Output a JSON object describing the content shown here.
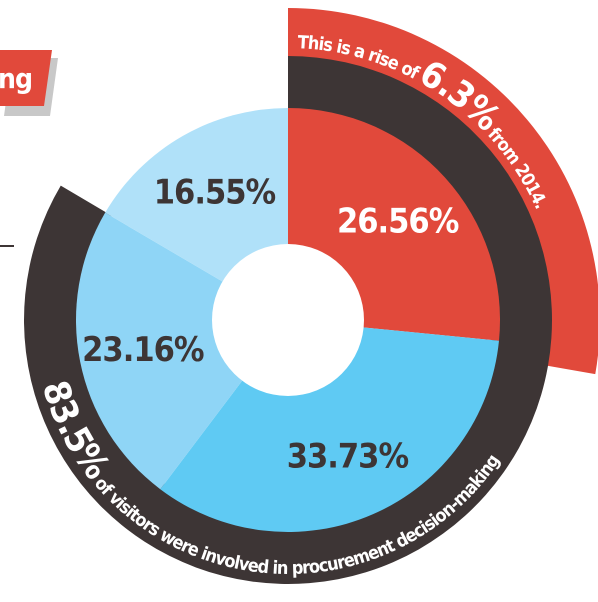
{
  "chart_data": {
    "type": "pie",
    "tag": "ng",
    "categories": [
      null,
      null,
      null,
      null
    ],
    "values": [
      26.56,
      33.73,
      23.16,
      16.55
    ],
    "value_labels": [
      "26.56%",
      "33.73%",
      "23.16%",
      "16.55%"
    ],
    "colors": [
      "#e1493b",
      "#5fcaf3",
      "#8fd5f6",
      "#b0e1f9"
    ],
    "rise": {
      "lead": "This is a rise of",
      "label": "6.3%",
      "tail": "from 2014."
    },
    "share": {
      "value": 83.5,
      "label": "83.5%",
      "text": "of visitors were involved in procurement decision-making"
    }
  }
}
